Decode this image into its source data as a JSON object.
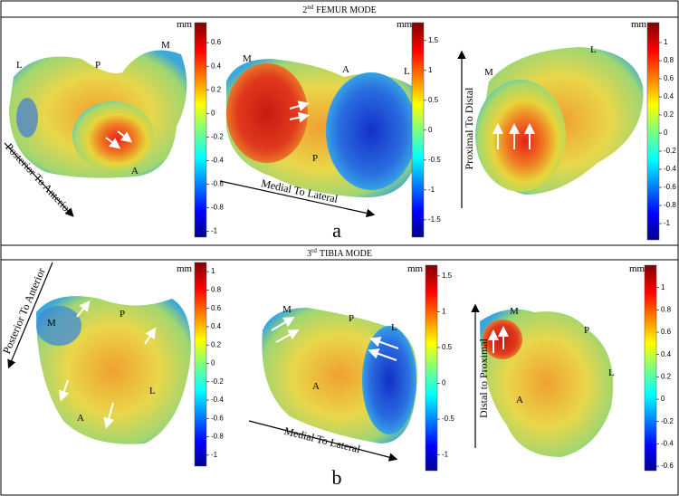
{
  "panels": [
    {
      "header": {
        "ordinal": "2",
        "suffix": "nd",
        "text": "FEMUR MODE"
      },
      "label": "a",
      "views": [
        {
          "labels": [
            "L",
            "P",
            "M",
            "A"
          ],
          "direction": "Posterior To Anterior",
          "colorbar": {
            "unit": "mm",
            "lim": [
              -1.05,
              0.77
            ],
            "ticks": [
              0.6,
              0.4,
              0.2,
              0,
              -0.2,
              -0.4,
              -0.6,
              -0.8,
              -1
            ]
          }
        },
        {
          "labels": [
            "M",
            "A",
            "L",
            "P"
          ],
          "direction": "Medial To Lateral",
          "colorbar": {
            "unit": "mm",
            "lim": [
              -1.79,
              1.8
            ],
            "ticks": [
              1.5,
              1,
              0.5,
              0,
              -0.5,
              -1,
              -1.5
            ]
          }
        },
        {
          "labels": [
            "M",
            "L"
          ],
          "direction": "Proximal To Distal",
          "colorbar": {
            "unit": "mm",
            "lim": [
              -1.18,
              1.22
            ],
            "ticks": [
              1,
              0.8,
              0.6,
              0.4,
              0.2,
              0,
              -0.2,
              -0.4,
              -0.6,
              -0.8,
              -1
            ]
          }
        }
      ]
    },
    {
      "header": {
        "ordinal": "3",
        "suffix": "rd",
        "text": "TIBIA MODE"
      },
      "label": "b",
      "views": [
        {
          "labels": [
            "M",
            "P",
            "L",
            "A"
          ],
          "direction": "Posterior To Anterior",
          "colorbar": {
            "unit": "mm",
            "lim": [
              -1.12,
              1.1
            ],
            "ticks": [
              1,
              0.8,
              0.6,
              0.4,
              0.2,
              0,
              -0.2,
              -0.4,
              -0.6,
              -0.8,
              -1
            ]
          }
        },
        {
          "labels": [
            "M",
            "P",
            "L",
            "A"
          ],
          "direction": "Medial To Lateral",
          "colorbar": {
            "unit": "mm",
            "lim": [
              -1.22,
              1.65
            ],
            "ticks": [
              1.5,
              1,
              0.5,
              0,
              -0.5,
              -1
            ]
          }
        },
        {
          "labels": [
            "M",
            "P",
            "L",
            "A"
          ],
          "direction": "Distal to Proximal",
          "colorbar": {
            "unit": "mm",
            "lim": [
              -0.64,
              1.2
            ],
            "ticks": [
              1,
              0.8,
              0.6,
              0.4,
              0.2,
              0,
              -0.2,
              -0.4,
              -0.6
            ]
          }
        }
      ]
    }
  ]
}
